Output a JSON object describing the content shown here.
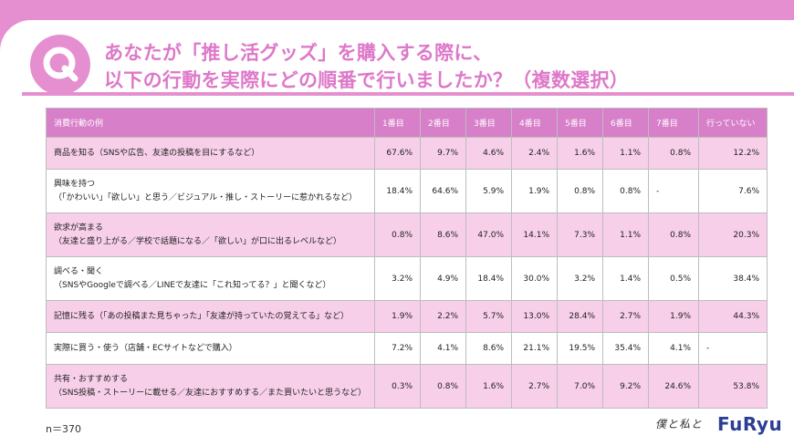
{
  "question": {
    "line1": "あなたが「推し活グッズ」を購入する際に、",
    "line2": "以下の行動を実際にどの順番で行いましたか？（複数選択）"
  },
  "chart_data": {
    "type": "table",
    "columns": [
      "消費行動の例",
      "1番目",
      "2番目",
      "3番目",
      "4番目",
      "5番目",
      "6番目",
      "7番目",
      "行っていない"
    ],
    "rows": [
      {
        "label": "商品を知る（SNSや広告、友達の投稿を目にするなど）",
        "sub": "",
        "values": [
          "67.6%",
          "9.7%",
          "4.6%",
          "2.4%",
          "1.6%",
          "1.1%",
          "0.8%",
          "12.2%"
        ]
      },
      {
        "label": "興味を持つ",
        "sub": "（「かわいい」「欲しい」と思う／ビジュアル・推し・ストーリーに惹かれるなど）",
        "values": [
          "18.4%",
          "64.6%",
          "5.9%",
          "1.9%",
          "0.8%",
          "0.8%",
          "-",
          "7.6%"
        ]
      },
      {
        "label": "欲求が高まる",
        "sub": "（友達と盛り上がる／学校で話題になる／「欲しい」が口に出るレベルなど）",
        "values": [
          "0.8%",
          "8.6%",
          "47.0%",
          "14.1%",
          "7.3%",
          "1.1%",
          "0.8%",
          "20.3%"
        ]
      },
      {
        "label": "調べる・聞く",
        "sub": "（SNSやGoogleで調べる／LINEで友達に「これ知ってる？」と聞くなど）",
        "values": [
          "3.2%",
          "4.9%",
          "18.4%",
          "30.0%",
          "3.2%",
          "1.4%",
          "0.5%",
          "38.4%"
        ]
      },
      {
        "label": "記憶に残る（「あの投稿また見ちゃった」「友達が持っていたの覚えてる」など）",
        "sub": "",
        "values": [
          "1.9%",
          "2.2%",
          "5.7%",
          "13.0%",
          "28.4%",
          "2.7%",
          "1.9%",
          "44.3%"
        ]
      },
      {
        "label": "実際に買う・使う（店舗・ECサイトなどで購入）",
        "sub": "",
        "values": [
          "7.2%",
          "4.1%",
          "8.6%",
          "21.1%",
          "19.5%",
          "35.4%",
          "4.1%",
          "-"
        ]
      },
      {
        "label": "共有・おすすめする",
        "sub": "（SNS投稿・ストーリーに載せる／友達におすすめする／また買いたいと思うなど）",
        "values": [
          "0.3%",
          "0.8%",
          "1.6%",
          "2.7%",
          "7.0%",
          "9.2%",
          "24.6%",
          "53.8%"
        ]
      }
    ]
  },
  "sample_size": "n＝370",
  "brand": {
    "script": "僕と私と",
    "logo": "FuRyu"
  },
  "colors": {
    "accent": "#e58fd0",
    "header": "#d77fc9",
    "row_pink": "#f7cfe9",
    "title": "#de78c9",
    "logo": "#2b3d95"
  }
}
